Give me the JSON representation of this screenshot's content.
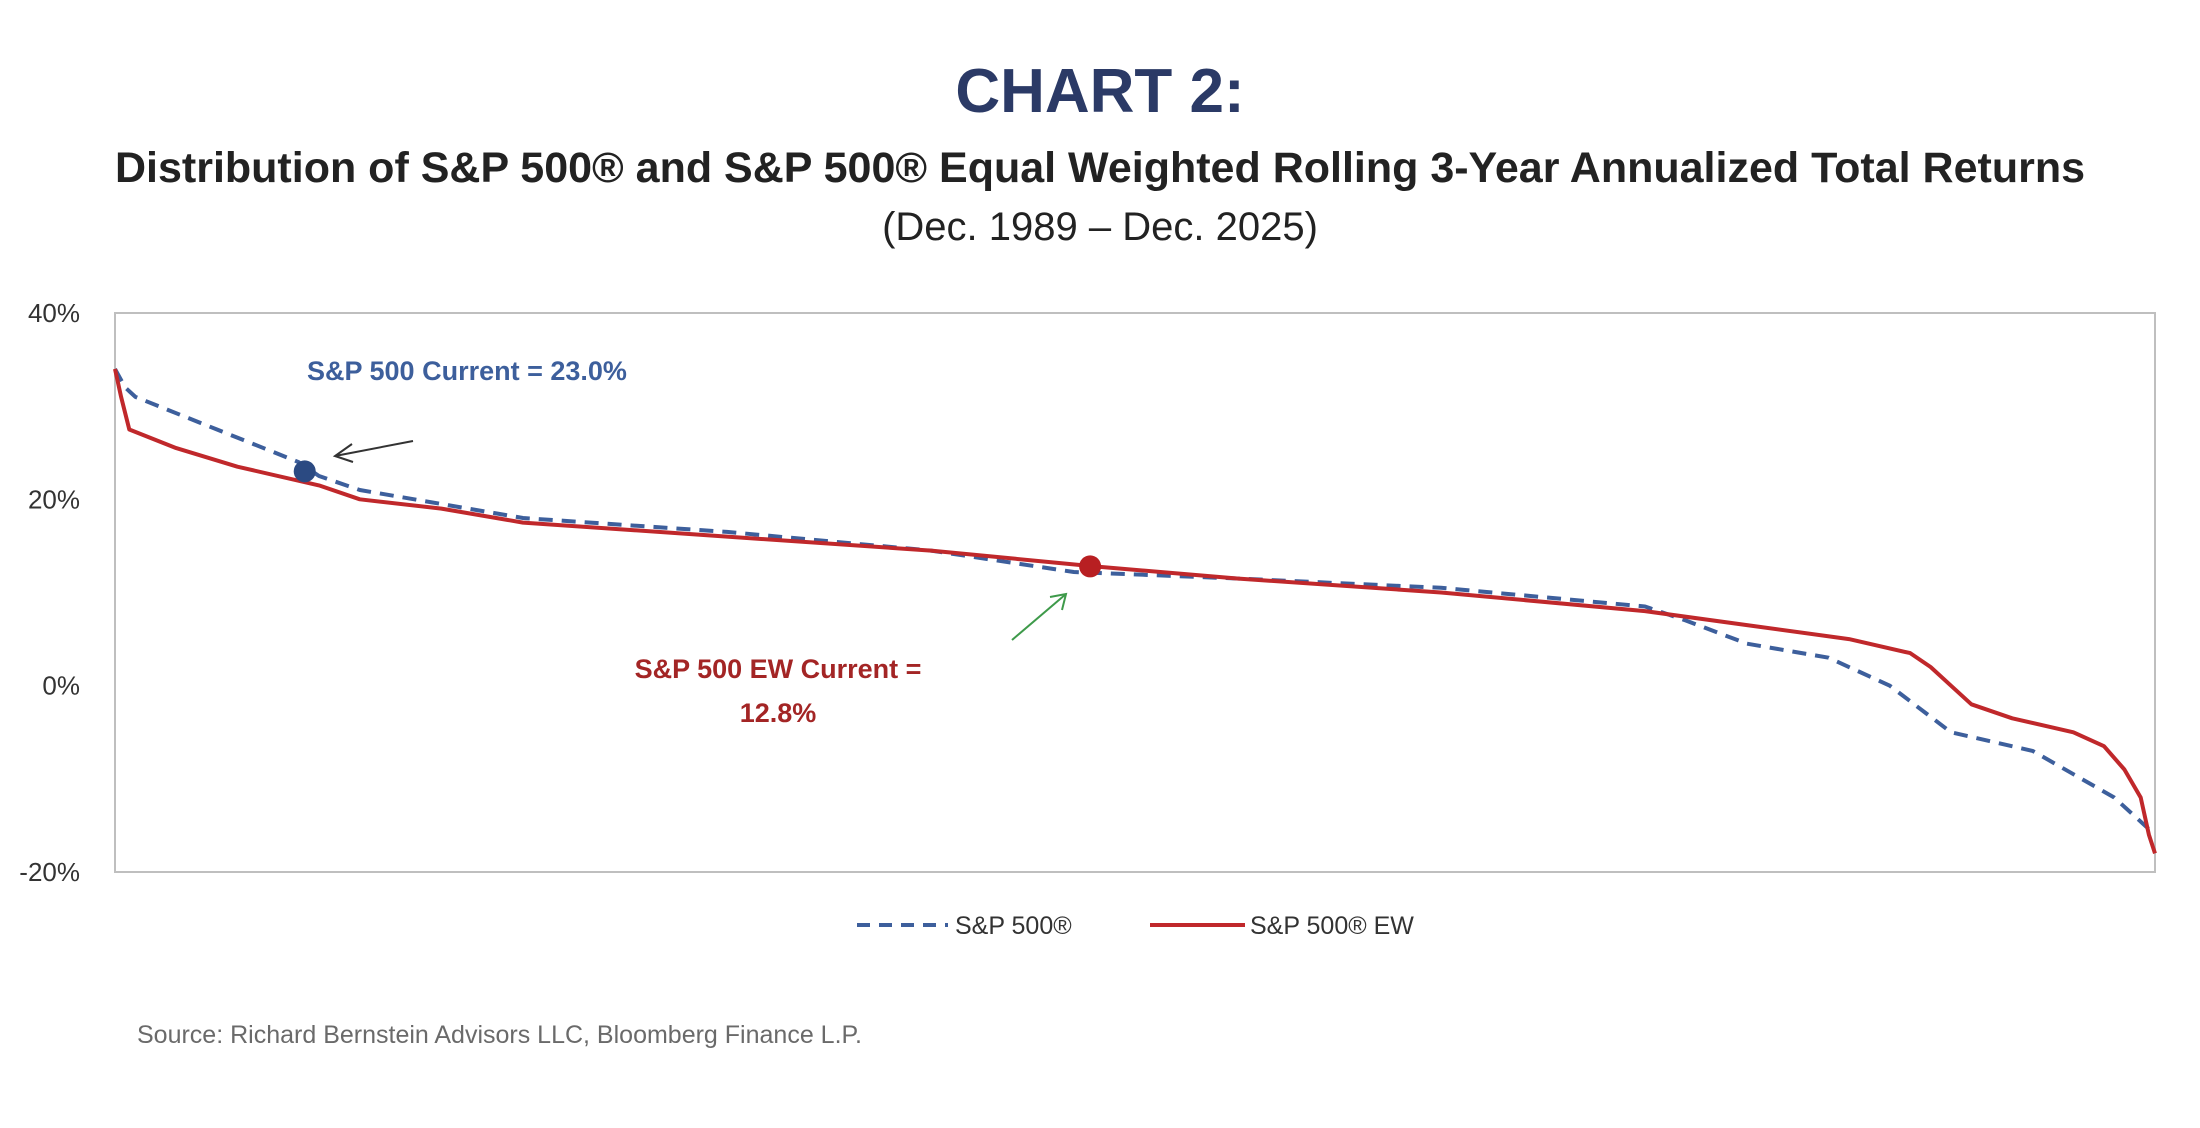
{
  "chart_data": {
    "type": "line",
    "title": "CHART 2:",
    "subtitle": "Distribution of S&P 500® and S&P 500® Equal Weighted Rolling 3-Year Annualized Total Returns",
    "date_range": "(Dec. 1989 – Dec. 2025)",
    "xlabel": "",
    "ylabel": "",
    "ylim": [
      -20,
      40
    ],
    "xlim": [
      0,
      100
    ],
    "yticks": [
      40,
      20,
      0,
      -20
    ],
    "ytick_labels": [
      "40%",
      "20%",
      "0%",
      "-20%"
    ],
    "grid": false,
    "legend_position": "bottom-center",
    "series": [
      {
        "name": "S&P 500®",
        "color": "#3d5f9c",
        "style": "dashed",
        "x": [
          0,
          0.5,
          1,
          5,
          9,
          10,
          12,
          16,
          20,
          30,
          40,
          47,
          55,
          65,
          75,
          77,
          80,
          84,
          87,
          90,
          94,
          96,
          98,
          100
        ],
        "values": [
          34,
          32,
          31,
          27.5,
          24,
          22.5,
          21,
          19.5,
          18,
          16.5,
          14.5,
          12.2,
          11.5,
          10.5,
          8.5,
          7,
          4.5,
          3,
          0,
          -5,
          -7,
          -9.5,
          -12,
          -16
        ]
      },
      {
        "name": "S&P 500® EW",
        "color": "#c0282b",
        "style": "solid",
        "x": [
          0,
          0.3,
          0.7,
          3,
          6,
          10,
          12,
          16,
          20,
          30,
          40,
          48,
          55,
          65,
          75,
          80,
          85,
          88,
          89,
          90,
          91,
          93,
          96,
          97.5,
          98.5,
          99.3,
          99.7,
          100
        ],
        "values": [
          34,
          31,
          27.5,
          25.5,
          23.5,
          21.5,
          20,
          19,
          17.5,
          16,
          14.5,
          12.8,
          11.5,
          10,
          8,
          6.5,
          5,
          3.5,
          2,
          0,
          -2,
          -3.5,
          -5,
          -6.5,
          -9,
          -12,
          -16,
          -18
        ]
      }
    ],
    "annotations": [
      {
        "text": "S&P 500 Current =  23.0%",
        "series": "S&P 500®",
        "value": 23.0,
        "x": 9.3
      },
      {
        "text_lines": [
          "S&P 500 EW Current =",
          "12.8%"
        ],
        "series": "S&P 500® EW",
        "value": 12.8,
        "x": 47.8
      }
    ],
    "source": "Source: Richard Bernstein Advisors LLC, Bloomberg Finance L.P."
  }
}
